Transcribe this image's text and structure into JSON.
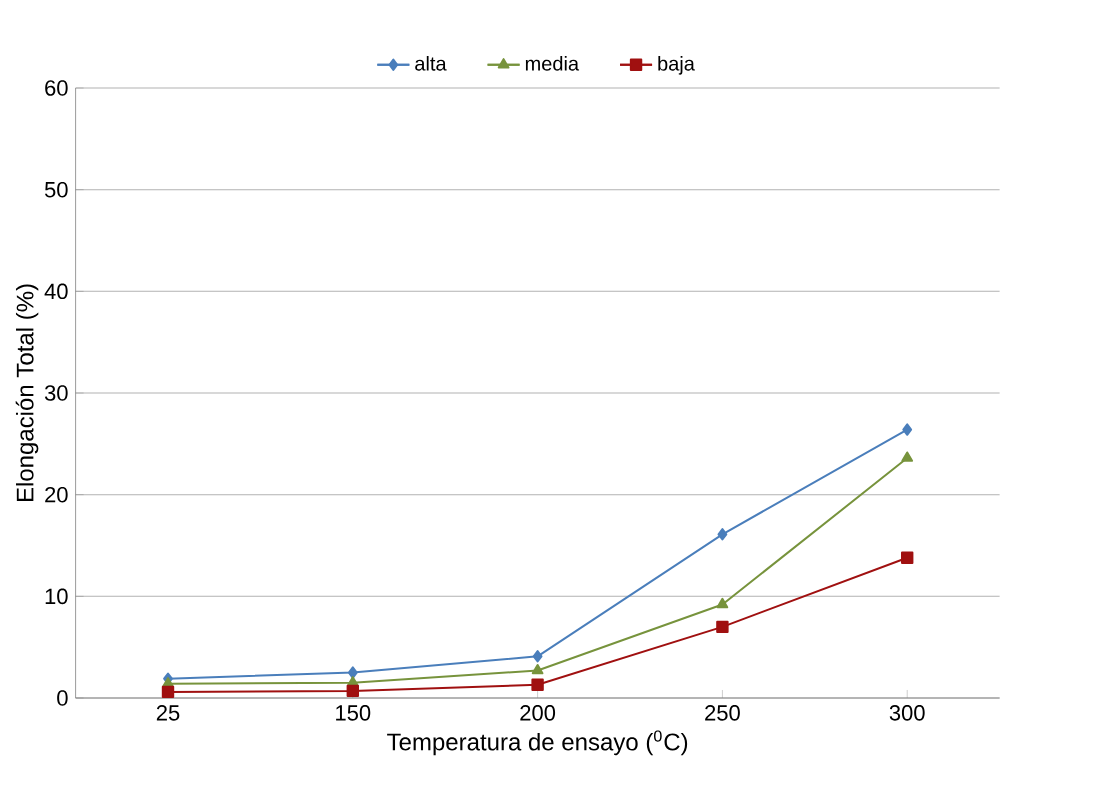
{
  "chart_data": {
    "type": "line",
    "xlabel": "Temperatura de ensayo ($^{0}$C)",
    "ylabel": "Elongación Total (%)",
    "categories": [
      "25",
      "150",
      "200",
      "250",
      "300"
    ],
    "series": [
      {
        "name": "alta",
        "color": "#4a7ebb",
        "marker": "diamond",
        "values": [
          1.9,
          2.5,
          4.1,
          16.1,
          26.4
        ]
      },
      {
        "name": "media",
        "color": "#77933c",
        "marker": "triangle",
        "values": [
          1.4,
          1.5,
          2.7,
          9.2,
          23.6
        ]
      },
      {
        "name": "baja",
        "color": "#a01010",
        "marker": "square",
        "values": [
          0.6,
          0.7,
          1.3,
          7.0,
          13.8
        ]
      }
    ],
    "ylim": [
      0,
      60
    ],
    "yticks": [
      0,
      10,
      20,
      30,
      40,
      50,
      60
    ],
    "grid": "y",
    "legend": "top"
  }
}
